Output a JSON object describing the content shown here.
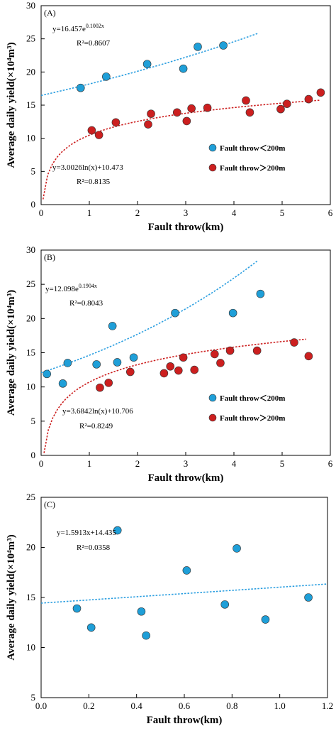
{
  "chart_data": [
    {
      "type": "scatter",
      "panel_label": "(A)",
      "xlabel": "Fault throw(km)",
      "ylabel": "Average daily yield(×10⁴m³)",
      "xlim": [
        0,
        6
      ],
      "ylim": [
        0,
        30
      ],
      "xticks": [
        "0",
        "1",
        "2",
        "3",
        "4",
        "5",
        "6"
      ],
      "yticks": [
        "0",
        "5",
        "10",
        "15",
        "20",
        "25",
        "30"
      ],
      "legend_position": "lower-right",
      "series": [
        {
          "name": "Fault throw＜200m",
          "color": "#1f9fd8",
          "points": [
            [
              0.82,
              17.6
            ],
            [
              1.35,
              19.3
            ],
            [
              2.2,
              21.2
            ],
            [
              2.95,
              20.5
            ],
            [
              3.25,
              23.8
            ],
            [
              3.78,
              24.0
            ]
          ],
          "trend": {
            "kind": "exp",
            "a": 16.457,
            "b": 0.1002,
            "x_range": [
              0,
              4.5
            ],
            "color": "#2a9ee0"
          },
          "equation": "y=16.457e",
          "equation_exp": "0.1002x",
          "r2": "R²=0.8607"
        },
        {
          "name": "Fault throw＞200m",
          "color": "#cc1f1f",
          "points": [
            [
              1.05,
              11.2
            ],
            [
              1.2,
              10.5
            ],
            [
              1.55,
              12.4
            ],
            [
              2.22,
              12.1
            ],
            [
              2.28,
              13.7
            ],
            [
              2.82,
              13.9
            ],
            [
              3.02,
              12.6
            ],
            [
              3.12,
              14.5
            ],
            [
              3.45,
              14.6
            ],
            [
              4.25,
              15.7
            ],
            [
              4.33,
              13.9
            ],
            [
              4.97,
              14.4
            ],
            [
              5.1,
              15.2
            ],
            [
              5.55,
              15.9
            ],
            [
              5.8,
              16.9
            ]
          ],
          "trend": {
            "kind": "log",
            "a": 3.0026,
            "b": 10.473,
            "x_range": [
              0.04,
              5.8
            ],
            "color": "#cc1f1f"
          },
          "equation": "y=3.0026ln(x)+10.473",
          "r2": "R²=0.8135"
        }
      ]
    },
    {
      "type": "scatter",
      "panel_label": "(B)",
      "xlabel": "Fault throw(km)",
      "ylabel": "Average daily yield(×10⁴m³)",
      "xlim": [
        0,
        6
      ],
      "ylim": [
        0,
        30
      ],
      "xticks": [
        "0",
        "1",
        "2",
        "3",
        "4",
        "5",
        "6"
      ],
      "yticks": [
        "0",
        "5",
        "10",
        "15",
        "20",
        "25",
        "30"
      ],
      "legend_position": "lower-right",
      "series": [
        {
          "name": "Fault throw＜200m",
          "color": "#1f9fd8",
          "points": [
            [
              0.12,
              11.9
            ],
            [
              0.45,
              10.5
            ],
            [
              0.55,
              13.5
            ],
            [
              1.15,
              13.3
            ],
            [
              1.48,
              18.9
            ],
            [
              1.58,
              13.6
            ],
            [
              1.92,
              14.3
            ],
            [
              2.78,
              20.8
            ],
            [
              3.98,
              20.8
            ],
            [
              4.55,
              23.6
            ]
          ],
          "trend": {
            "kind": "exp",
            "a": 12.098,
            "b": 0.1904,
            "x_range": [
              0,
              4.5
            ],
            "color": "#2a9ee0"
          },
          "equation": "y=12.098e",
          "equation_exp": "0.1904x",
          "r2": "R²=0.8043"
        },
        {
          "name": "Fault throw＞200m",
          "color": "#cc1f1f",
          "points": [
            [
              1.22,
              9.9
            ],
            [
              1.4,
              10.6
            ],
            [
              1.85,
              12.2
            ],
            [
              2.55,
              12.0
            ],
            [
              2.68,
              13.0
            ],
            [
              2.85,
              12.4
            ],
            [
              2.95,
              14.3
            ],
            [
              3.18,
              12.5
            ],
            [
              3.6,
              14.8
            ],
            [
              3.72,
              13.5
            ],
            [
              3.92,
              15.3
            ],
            [
              4.48,
              15.3
            ],
            [
              5.25,
              16.5
            ],
            [
              5.55,
              14.5
            ]
          ],
          "trend": {
            "kind": "log",
            "a": 3.6842,
            "b": 10.706,
            "x_range": [
              0.06,
              5.5
            ],
            "color": "#cc1f1f"
          },
          "equation": "y=3.6842ln(x)+10.706",
          "r2": "R²=0.8249"
        }
      ]
    },
    {
      "type": "scatter",
      "panel_label": "(C)",
      "xlabel": "Fault throw(km)",
      "ylabel": "Average daily yield(×10⁴m³)",
      "xlim": [
        0,
        1.2
      ],
      "ylim": [
        5,
        25
      ],
      "xticks": [
        "0.0",
        "0.2",
        "0.4",
        "0.6",
        "0.8",
        "1.0",
        "1.2"
      ],
      "yticks": [
        "5",
        "10",
        "15",
        "20",
        "25"
      ],
      "series": [
        {
          "color": "#1f9fd8",
          "points": [
            [
              0.15,
              13.9
            ],
            [
              0.21,
              12.0
            ],
            [
              0.32,
              21.7
            ],
            [
              0.42,
              13.6
            ],
            [
              0.44,
              11.2
            ],
            [
              0.61,
              17.7
            ],
            [
              0.77,
              14.3
            ],
            [
              0.82,
              19.9
            ],
            [
              0.94,
              12.8
            ],
            [
              1.12,
              15.0
            ]
          ],
          "trend": {
            "kind": "linear",
            "a": 1.5913,
            "b": 14.435,
            "x_range": [
              0,
              1.2
            ],
            "color": "#2a9ee0"
          },
          "equation": "y=1.5913x+14.435",
          "r2": "R²=0.0358"
        }
      ]
    }
  ]
}
